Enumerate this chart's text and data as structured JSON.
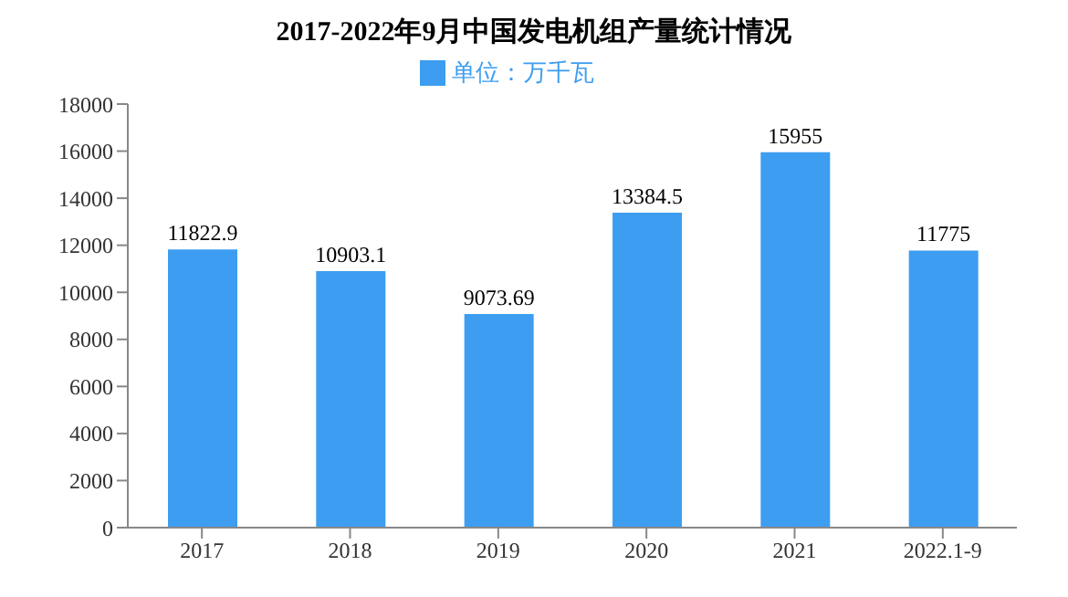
{
  "chart_data": {
    "type": "bar",
    "title": "2017-2022年9月中国发电机组产量统计情况",
    "categories": [
      "2017",
      "2018",
      "2019",
      "2020",
      "2021",
      "2022.1-9"
    ],
    "series": [
      {
        "name": "单位：万千瓦",
        "color": "#3d9df0",
        "values": [
          11822.9,
          10903.1,
          9073.69,
          13384.5,
          15955,
          11775
        ]
      }
    ],
    "ylim": [
      0,
      18000
    ],
    "yticks": [
      0,
      2000,
      4000,
      6000,
      8000,
      10000,
      12000,
      14000,
      16000,
      18000
    ],
    "data_labels": true,
    "legend": "top",
    "grid": false
  }
}
